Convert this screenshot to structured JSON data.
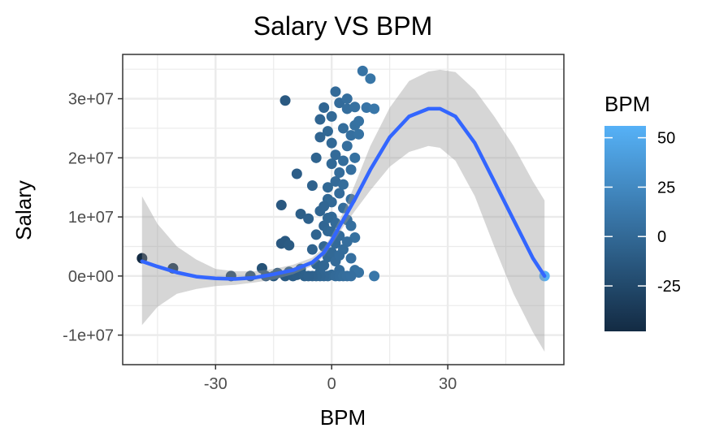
{
  "chart_data": {
    "type": "scatter",
    "title": "Salary VS BPM",
    "xlabel": "BPM",
    "ylabel": "Salary",
    "xlim": [
      -54,
      60
    ],
    "ylim": [
      -15000000,
      37500000
    ],
    "x_ticks": [
      -30,
      0,
      30
    ],
    "x_tick_labels": [
      "-30",
      "0",
      "30"
    ],
    "y_ticks": [
      -10000000,
      0,
      10000000,
      20000000,
      30000000
    ],
    "y_tick_labels": [
      "-1e+07",
      "0e+00",
      "1e+07",
      "2e+07",
      "3e+07"
    ],
    "grid": true,
    "legend": {
      "title": "BPM",
      "position": "right",
      "type": "colorbar",
      "range": [
        -48,
        56
      ],
      "ticks": [
        -25,
        0,
        25,
        50
      ],
      "tick_labels": [
        "-25",
        "0",
        "25",
        "50"
      ],
      "color_low": "#132b43",
      "color_high": "#56b1f7"
    },
    "smooth_color": "#3366ff",
    "ribbon_color": "#999999",
    "points": [
      {
        "x": -49,
        "y": 3000000
      },
      {
        "x": -41,
        "y": 1300000
      },
      {
        "x": -26,
        "y": 0
      },
      {
        "x": -21,
        "y": 0
      },
      {
        "x": -18,
        "y": 1300000
      },
      {
        "x": -17,
        "y": 0
      },
      {
        "x": -15,
        "y": 0
      },
      {
        "x": -14,
        "y": 500000
      },
      {
        "x": -12,
        "y": 0
      },
      {
        "x": -11,
        "y": 700000
      },
      {
        "x": -10,
        "y": 0
      },
      {
        "x": -9,
        "y": 200000
      },
      {
        "x": -8,
        "y": 1200000
      },
      {
        "x": -7,
        "y": 0
      },
      {
        "x": -12,
        "y": 29700000
      },
      {
        "x": -13,
        "y": 12000000
      },
      {
        "x": -9,
        "y": 17300000
      },
      {
        "x": -8,
        "y": 10500000
      },
      {
        "x": -13,
        "y": 5500000
      },
      {
        "x": -12,
        "y": 5900000
      },
      {
        "x": -11,
        "y": 5200000
      },
      {
        "x": -6,
        "y": 9700000
      },
      {
        "x": -5,
        "y": 15300000
      },
      {
        "x": -5,
        "y": 4500000
      },
      {
        "x": -4,
        "y": 7000000
      },
      {
        "x": -4,
        "y": 2000000
      },
      {
        "x": -3,
        "y": 11000000
      },
      {
        "x": -3,
        "y": 600000
      },
      {
        "x": -2,
        "y": 8500000
      },
      {
        "x": -2,
        "y": 5000000
      },
      {
        "x": -2,
        "y": 1800000
      },
      {
        "x": -1,
        "y": 13000000
      },
      {
        "x": -1,
        "y": 7600000
      },
      {
        "x": -1,
        "y": 3200000
      },
      {
        "x": 0,
        "y": 19000000
      },
      {
        "x": 0,
        "y": 10000000
      },
      {
        "x": 0,
        "y": 4000000
      },
      {
        "x": 0,
        "y": 200000
      },
      {
        "x": 1,
        "y": 16000000
      },
      {
        "x": 1,
        "y": 9000000
      },
      {
        "x": 1,
        "y": 2500000
      },
      {
        "x": 2,
        "y": 14000000
      },
      {
        "x": 2,
        "y": 6800000
      },
      {
        "x": 2,
        "y": 1000000
      },
      {
        "x": -3,
        "y": 26500000
      },
      {
        "x": -2,
        "y": 28500000
      },
      {
        "x": -4,
        "y": 20000000
      },
      {
        "x": -3,
        "y": 23500000
      },
      {
        "x": -1,
        "y": 24500000
      },
      {
        "x": 0,
        "y": 22500000
      },
      {
        "x": 0,
        "y": 27000000
      },
      {
        "x": 1,
        "y": 31200000
      },
      {
        "x": 2,
        "y": 29300000
      },
      {
        "x": 3,
        "y": 25000000
      },
      {
        "x": 3,
        "y": 19500000
      },
      {
        "x": 3,
        "y": 11500000
      },
      {
        "x": 4,
        "y": 28300000
      },
      {
        "x": 4,
        "y": 22000000
      },
      {
        "x": 5,
        "y": 23800000
      },
      {
        "x": 5,
        "y": 18000000
      },
      {
        "x": 5,
        "y": 8500000
      },
      {
        "x": 6,
        "y": 28600000
      },
      {
        "x": 6,
        "y": 25500000
      },
      {
        "x": 6,
        "y": 20000000
      },
      {
        "x": 7,
        "y": 26200000
      },
      {
        "x": 7,
        "y": 24000000
      },
      {
        "x": 4,
        "y": 30000000
      },
      {
        "x": 9,
        "y": 28500000
      },
      {
        "x": 11,
        "y": 28300000
      },
      {
        "x": 8,
        "y": 34700000
      },
      {
        "x": 10,
        "y": 33400000
      },
      {
        "x": 5,
        "y": 13000000
      },
      {
        "x": 6,
        "y": 6500000
      },
      {
        "x": 4,
        "y": 5800000
      },
      {
        "x": 5,
        "y": 3000000
      },
      {
        "x": 6,
        "y": 1000000
      },
      {
        "x": 7,
        "y": 600000
      },
      {
        "x": 3,
        "y": 4500000
      },
      {
        "x": 1,
        "y": 5500000
      },
      {
        "x": -1,
        "y": 0
      },
      {
        "x": -2,
        "y": 0
      },
      {
        "x": -3,
        "y": 0
      },
      {
        "x": -4,
        "y": 0
      },
      {
        "x": -5,
        "y": 0
      },
      {
        "x": -6,
        "y": 0
      },
      {
        "x": 1,
        "y": 0
      },
      {
        "x": 2,
        "y": 0
      },
      {
        "x": 3,
        "y": 0
      },
      {
        "x": 4,
        "y": 0
      },
      {
        "x": 5,
        "y": 0
      },
      {
        "x": 11,
        "y": 0
      },
      {
        "x": 55,
        "y": 0
      },
      {
        "x": -1,
        "y": 15000000
      },
      {
        "x": 0,
        "y": 12500000
      },
      {
        "x": 2,
        "y": 17500000
      },
      {
        "x": -2,
        "y": 11800000
      },
      {
        "x": 1,
        "y": 20500000
      },
      {
        "x": 3,
        "y": 15500000
      },
      {
        "x": 4,
        "y": 9500000
      },
      {
        "x": 0,
        "y": 7500000
      },
      {
        "x": -1,
        "y": 9800000
      },
      {
        "x": 2,
        "y": 3500000
      }
    ],
    "smooth_curve": [
      {
        "x": -49,
        "y": 2500000
      },
      {
        "x": -45,
        "y": 1600000
      },
      {
        "x": -40,
        "y": 600000
      },
      {
        "x": -35,
        "y": -100000
      },
      {
        "x": -30,
        "y": -400000
      },
      {
        "x": -25,
        "y": -500000
      },
      {
        "x": -20,
        "y": -300000
      },
      {
        "x": -15,
        "y": 300000
      },
      {
        "x": -10,
        "y": 1000000
      },
      {
        "x": -5,
        "y": 2300000
      },
      {
        "x": -2,
        "y": 4000000
      },
      {
        "x": 0,
        "y": 6000000
      },
      {
        "x": 3,
        "y": 9500000
      },
      {
        "x": 6,
        "y": 13000000
      },
      {
        "x": 10,
        "y": 18000000
      },
      {
        "x": 15,
        "y": 23500000
      },
      {
        "x": 20,
        "y": 27000000
      },
      {
        "x": 25,
        "y": 28300000
      },
      {
        "x": 28,
        "y": 28300000
      },
      {
        "x": 32,
        "y": 27000000
      },
      {
        "x": 37,
        "y": 22500000
      },
      {
        "x": 42,
        "y": 16000000
      },
      {
        "x": 47,
        "y": 9500000
      },
      {
        "x": 52,
        "y": 3000000
      },
      {
        "x": 55,
        "y": 0
      }
    ],
    "ribbon": [
      {
        "x": -49,
        "lo": -8300000,
        "hi": 13500000
      },
      {
        "x": -45,
        "lo": -5200000,
        "hi": 8800000
      },
      {
        "x": -40,
        "lo": -3000000,
        "hi": 5000000
      },
      {
        "x": -35,
        "lo": -2200000,
        "hi": 2800000
      },
      {
        "x": -30,
        "lo": -1700000,
        "hi": 1200000
      },
      {
        "x": -25,
        "lo": -1500000,
        "hi": 800000
      },
      {
        "x": -20,
        "lo": -1100000,
        "hi": 800000
      },
      {
        "x": -15,
        "lo": -600000,
        "hi": 1200000
      },
      {
        "x": -10,
        "lo": 300000,
        "hi": 1900000
      },
      {
        "x": -5,
        "lo": 1700000,
        "hi": 3100000
      },
      {
        "x": -2,
        "lo": 3300000,
        "hi": 4800000
      },
      {
        "x": 0,
        "lo": 5200000,
        "hi": 6900000
      },
      {
        "x": 3,
        "lo": 8300000,
        "hi": 10800000
      },
      {
        "x": 6,
        "lo": 11000000,
        "hi": 15500000
      },
      {
        "x": 10,
        "lo": 14500000,
        "hi": 22000000
      },
      {
        "x": 15,
        "lo": 18500000,
        "hi": 28500000
      },
      {
        "x": 20,
        "lo": 21000000,
        "hi": 33000000
      },
      {
        "x": 25,
        "lo": 22000000,
        "hi": 34600000
      },
      {
        "x": 28,
        "lo": 21700000,
        "hi": 34900000
      },
      {
        "x": 32,
        "lo": 19500000,
        "hi": 34500000
      },
      {
        "x": 37,
        "lo": 13500000,
        "hi": 31500000
      },
      {
        "x": 42,
        "lo": 5000000,
        "hi": 27000000
      },
      {
        "x": 47,
        "lo": -3000000,
        "hi": 22000000
      },
      {
        "x": 52,
        "lo": -9500000,
        "hi": 16000000
      },
      {
        "x": 55,
        "lo": -12800000,
        "hi": 12800000
      }
    ]
  }
}
